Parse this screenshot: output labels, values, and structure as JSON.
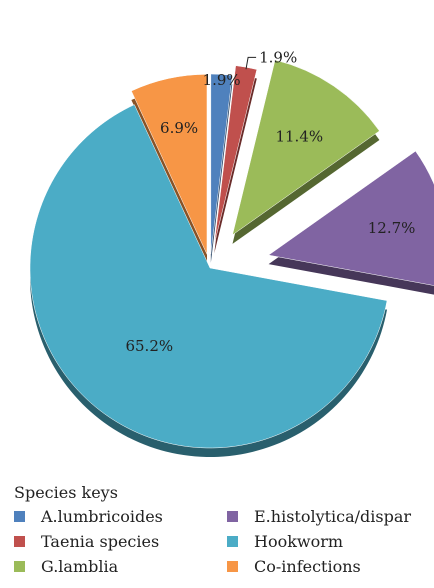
{
  "chart_data": {
    "type": "pie",
    "legend_title": "Species keys",
    "legend_placement": "bottom",
    "slices": [
      {
        "label": "A.lumbricoides",
        "value": 1.9,
        "value_label": "1.9%",
        "color": "#4f81bd"
      },
      {
        "label": "Taenia species",
        "value": 1.9,
        "value_label": "1.9%",
        "color": "#c0504d"
      },
      {
        "label": "G.lamblia",
        "value": 11.4,
        "value_label": "11.4%",
        "color": "#9bbb59"
      },
      {
        "label": "E.histolytica/dispar",
        "value": 12.7,
        "value_label": "12.7%",
        "color": "#8064a2"
      },
      {
        "label": "Hookworm",
        "value": 65.2,
        "value_label": "65.2%",
        "color": "#4bacc6"
      },
      {
        "label": "Co-infections",
        "value": 6.9,
        "value_label": "6.9%",
        "color": "#f79646"
      }
    ]
  }
}
